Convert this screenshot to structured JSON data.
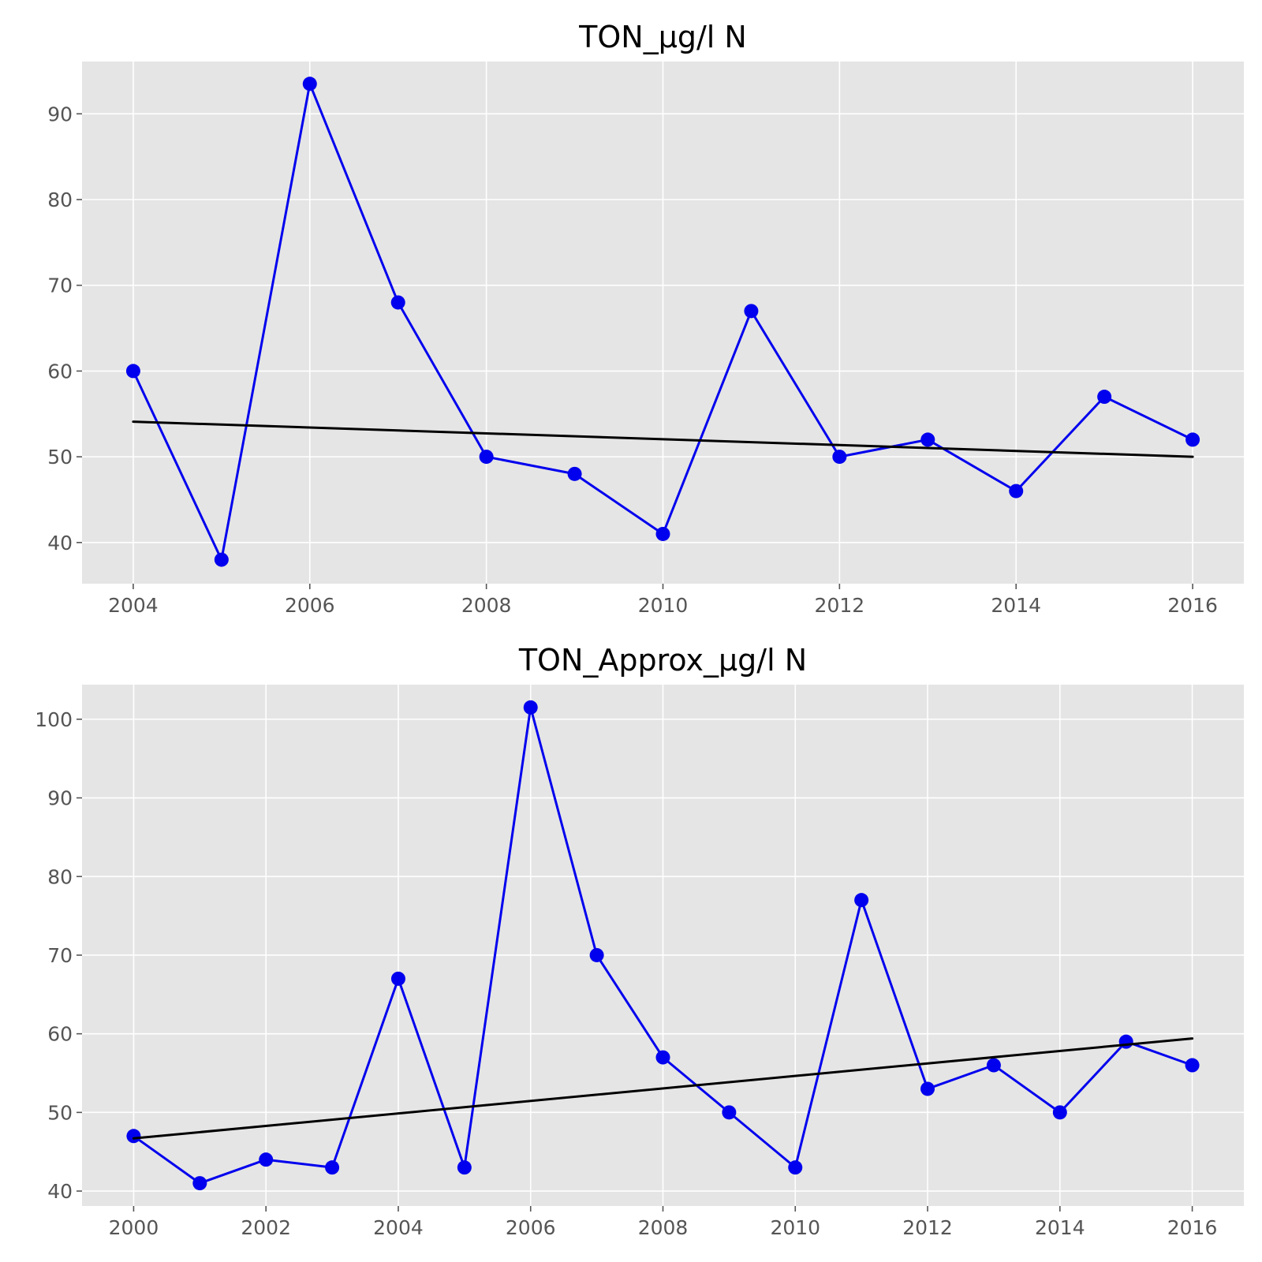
{
  "chart_data": [
    {
      "type": "line",
      "title": "TON_μg/l N",
      "xlabel": "",
      "ylabel": "",
      "xlim": [
        2003.42,
        2016.58
      ],
      "ylim": [
        35.2,
        96.1
      ],
      "xticks": [
        2004,
        2006,
        2008,
        2010,
        2012,
        2014,
        2016
      ],
      "yticks": [
        40,
        50,
        60,
        70,
        80,
        90
      ],
      "grid": true,
      "series": [
        {
          "color": "#0000ee",
          "marker": "circle",
          "x": [
            2004,
            2005,
            2006,
            2007,
            2008,
            2009,
            2010,
            2011,
            2012,
            2013,
            2014,
            2015,
            2016
          ],
          "y": [
            60,
            38,
            93.5,
            68,
            50,
            48,
            41,
            67,
            50,
            52,
            46,
            57,
            52
          ]
        },
        {
          "color": "#000000",
          "marker": "none",
          "x": [
            2004,
            2016
          ],
          "y": [
            54.1,
            50.0
          ]
        }
      ]
    },
    {
      "type": "line",
      "title": "TON_Approx_μg/l N",
      "xlabel": "",
      "ylabel": "",
      "xlim": [
        1999.22,
        2016.78
      ],
      "ylim": [
        38.1,
        104.4
      ],
      "xticks": [
        2000,
        2002,
        2004,
        2006,
        2008,
        2010,
        2012,
        2014,
        2016
      ],
      "yticks": [
        40,
        50,
        60,
        70,
        80,
        90,
        100
      ],
      "grid": true,
      "series": [
        {
          "color": "#0000ee",
          "marker": "circle",
          "x": [
            2000,
            2001,
            2002,
            2003,
            2004,
            2005,
            2006,
            2007,
            2008,
            2009,
            2010,
            2011,
            2012,
            2013,
            2014,
            2015,
            2016
          ],
          "y": [
            47,
            41,
            44,
            43,
            67,
            43,
            101.5,
            70,
            57,
            50,
            43,
            77,
            53,
            56,
            50,
            59,
            56
          ]
        },
        {
          "color": "#000000",
          "marker": "none",
          "x": [
            2000,
            2016
          ],
          "y": [
            46.7,
            59.4
          ]
        }
      ]
    }
  ]
}
